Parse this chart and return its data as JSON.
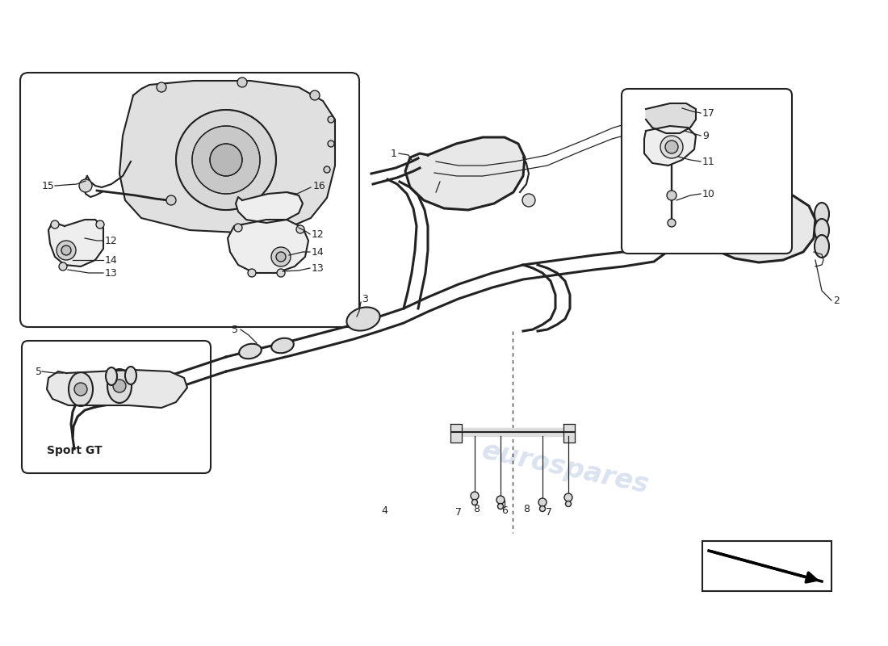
{
  "bg_color": "#ffffff",
  "line_color": "#222222",
  "fill_light": "#eeeeee",
  "fill_mid": "#dddddd",
  "watermark_color": "#c8d4e8",
  "label_fontsize": 9,
  "sport_gt_label": "Sport GT"
}
